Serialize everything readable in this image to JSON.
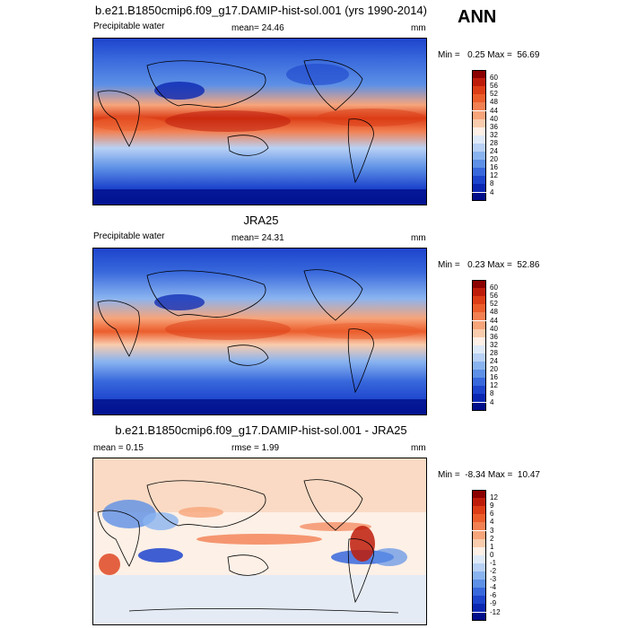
{
  "season": "ANN",
  "chart_data": [
    {
      "type": "heatmap",
      "title": "b.e21.B1850cmip6.f09_g17.DAMIP-hist-sol.001 (yrs 1990-2014)",
      "variable": "Precipitable water",
      "mean_label": "mean=",
      "mean": "24.46",
      "units": "mm",
      "min_max_text": "Min =   0.25 Max =  56.69",
      "min": 0.25,
      "max": 56.69,
      "colorbar_levels": [
        "60",
        "56",
        "52",
        "48",
        "44",
        "40",
        "36",
        "32",
        "28",
        "24",
        "20",
        "16",
        "12",
        "8",
        "4"
      ],
      "colorbar_colors": [
        "#8b0000",
        "#be1c0b",
        "#dc3d16",
        "#ec5d2c",
        "#f28052",
        "#f7a57b",
        "#f9ccad",
        "#fdf0e6",
        "#dfeaf9",
        "#b8d1f5",
        "#8ab4f0",
        "#5d90e6",
        "#3868dc",
        "#1d44cc",
        "#0b27b2",
        "#000e8a"
      ],
      "colormap": "diverging-blue-red",
      "grid": false
    },
    {
      "type": "heatmap",
      "title": "JRA25",
      "variable": "Precipitable water",
      "mean_label": "mean=",
      "mean": "24.31",
      "units": "mm",
      "min_max_text": "Min =   0.23 Max =  52.86",
      "min": 0.23,
      "max": 52.86,
      "colorbar_levels": [
        "60",
        "56",
        "52",
        "48",
        "44",
        "40",
        "36",
        "32",
        "28",
        "24",
        "20",
        "16",
        "12",
        "8",
        "4"
      ],
      "colorbar_colors": [
        "#8b0000",
        "#be1c0b",
        "#dc3d16",
        "#ec5d2c",
        "#f28052",
        "#f7a57b",
        "#f9ccad",
        "#fdf0e6",
        "#dfeaf9",
        "#b8d1f5",
        "#8ab4f0",
        "#5d90e6",
        "#3868dc",
        "#1d44cc",
        "#0b27b2",
        "#000e8a"
      ],
      "colormap": "diverging-blue-red",
      "grid": false
    },
    {
      "type": "heatmap",
      "title": "b.e21.B1850cmip6.f09_g17.DAMIP-hist-sol.001 - JRA25",
      "variable": "",
      "mean_label": "mean =",
      "mean": "0.15",
      "rmse_label": "rmse =",
      "rmse": "1.99",
      "units": "mm",
      "min_max_text": "Min =  -8.34 Max =  10.47",
      "min": -8.34,
      "max": 10.47,
      "colorbar_levels": [
        "12",
        "9",
        "6",
        "4",
        "3",
        "2",
        "1",
        "0",
        "-1",
        "-2",
        "-3",
        "-4",
        "-6",
        "-9",
        "-12"
      ],
      "colorbar_colors": [
        "#8b0000",
        "#be1c0b",
        "#dc3d16",
        "#ec5d2c",
        "#f28052",
        "#f7a57b",
        "#f9ccad",
        "#fdf0e6",
        "#dfeaf9",
        "#b8d1f5",
        "#8ab4f0",
        "#5d90e6",
        "#3868dc",
        "#1d44cc",
        "#0b27b2",
        "#000e8a"
      ],
      "colormap": "diverging-blue-red",
      "grid": false
    }
  ]
}
